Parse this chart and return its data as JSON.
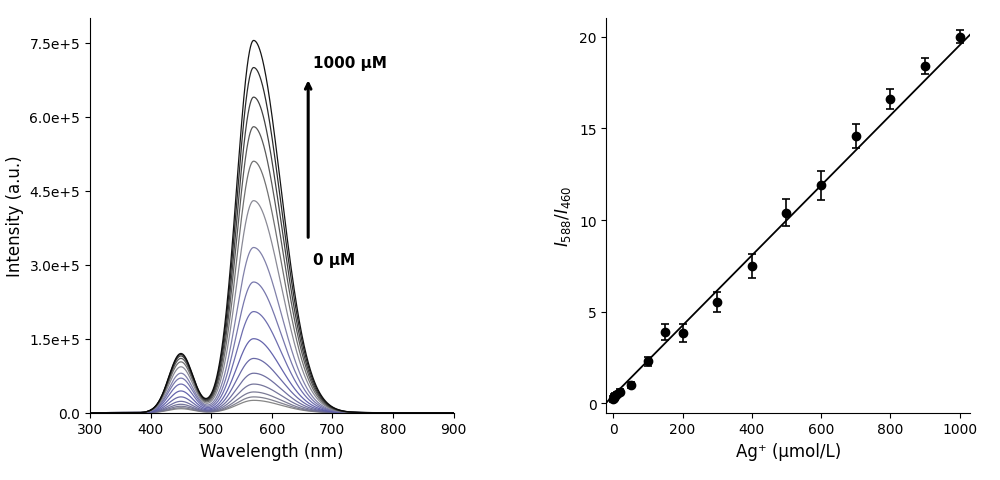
{
  "left_panel": {
    "xlabel": "Wavelength (nm)",
    "ylabel": "Intensity (a.u.)",
    "xlim": [
      300,
      900
    ],
    "ylim": [
      0,
      800000
    ],
    "yticks": [
      0.0,
      150000,
      300000,
      450000,
      600000,
      750000
    ],
    "ytick_labels": [
      "0.0",
      "1.5e+5",
      "3.0e+5",
      "4.5e+5",
      "6.0e+5",
      "7.5e+5"
    ],
    "xticks": [
      300,
      400,
      500,
      600,
      700,
      800,
      900
    ],
    "annotation_top": "1000 μM",
    "annotation_bottom": "0 μM",
    "peak_wavelength": 570,
    "secondary_peak": 450,
    "num_curves": 16,
    "peak_heights": [
      25000,
      32000,
      42000,
      58000,
      80000,
      110000,
      150000,
      205000,
      265000,
      335000,
      430000,
      510000,
      580000,
      640000,
      700000,
      755000
    ],
    "secondary_heights": [
      8000,
      10000,
      13000,
      17000,
      23000,
      32000,
      44000,
      58000,
      70000,
      80000,
      93000,
      103000,
      110000,
      115000,
      118000,
      120000
    ],
    "colors": [
      "#808080",
      "#7a7a8a",
      "#747490",
      "#6e6e96",
      "#68689c",
      "#6262a2",
      "#5c5ca8",
      "#6666aa",
      "#7070a8",
      "#7a7aa5",
      "#848490",
      "#6a6a6a",
      "#505050",
      "#383838",
      "#202020",
      "#080808"
    ]
  },
  "right_panel": {
    "xlabel": "Ag⁺ (μmol/L)",
    "ylabel": "I$_{588}$/I$_{460}$",
    "xlim": [
      -20,
      1030
    ],
    "ylim": [
      -0.5,
      21
    ],
    "xticks": [
      0,
      200,
      400,
      600,
      800,
      1000
    ],
    "yticks": [
      0,
      5,
      10,
      15,
      20
    ],
    "data_x": [
      0,
      1,
      2,
      5,
      10,
      20,
      50,
      100,
      150,
      200,
      300,
      400,
      500,
      600,
      700,
      800,
      900,
      1000
    ],
    "data_y": [
      0.25,
      0.3,
      0.35,
      0.4,
      0.5,
      0.65,
      1.0,
      2.3,
      3.9,
      3.85,
      5.55,
      7.5,
      10.4,
      11.9,
      14.6,
      16.6,
      18.4,
      20.0
    ],
    "data_yerr": [
      0.15,
      0.15,
      0.15,
      0.15,
      0.15,
      0.15,
      0.15,
      0.25,
      0.45,
      0.5,
      0.55,
      0.65,
      0.75,
      0.8,
      0.65,
      0.55,
      0.45,
      0.35
    ],
    "fit_x": [
      -20,
      1030
    ],
    "fit_y": [
      0.05,
      20.1
    ]
  }
}
